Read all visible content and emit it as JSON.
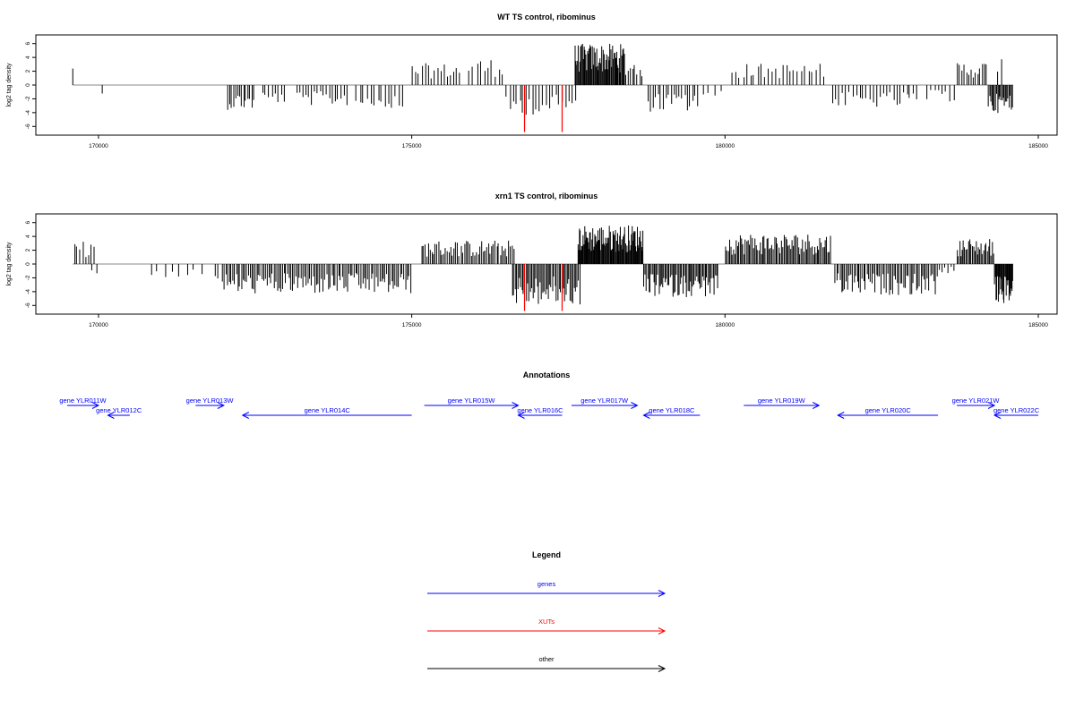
{
  "chart_data": [
    {
      "type": "bar",
      "title": "WT TS control, ribominus",
      "ylabel": "log2 tag density",
      "xlim": [
        169000,
        185300
      ],
      "ylim": [
        -7,
        7
      ],
      "xticks": [
        170000,
        175000,
        180000,
        185000
      ],
      "xtick_labels": [
        "170000",
        "175000",
        "180000",
        "185000"
      ],
      "yticks": [
        6,
        4,
        2,
        0,
        -2,
        -4,
        -6
      ],
      "ytick_labels": [
        "6",
        "4",
        "2",
        "0",
        "-2",
        "-4",
        "-6"
      ],
      "baseline_color": "#888888",
      "bar_color": "#000000",
      "highlight_color": "#ff0000",
      "highlights": [
        {
          "x": 176800,
          "value": -6.8
        },
        {
          "x": 177400,
          "value": -6.8
        }
      ],
      "segments": [
        {
          "start": 169590,
          "end": 169600,
          "n": 1,
          "value": 2.1
        },
        {
          "start": 170060,
          "end": 170070,
          "n": 1,
          "value": -1.6
        },
        {
          "start": 172050,
          "end": 172500,
          "n": 14,
          "value": -2.4
        },
        {
          "start": 172600,
          "end": 173000,
          "n": 8,
          "value": -1.8
        },
        {
          "start": 173150,
          "end": 174000,
          "n": 18,
          "value": -2.0
        },
        {
          "start": 174100,
          "end": 174900,
          "n": 14,
          "value": -2.3
        },
        {
          "start": 175000,
          "end": 175800,
          "n": 16,
          "value": 2.1
        },
        {
          "start": 175900,
          "end": 176500,
          "n": 10,
          "value": 2.6
        },
        {
          "start": 176500,
          "end": 177650,
          "n": 22,
          "value": -2.9
        },
        {
          "start": 177600,
          "end": 178400,
          "n": 60,
          "value": 4.0
        },
        {
          "start": 178400,
          "end": 178700,
          "n": 8,
          "value": 2.5
        },
        {
          "start": 178750,
          "end": 179600,
          "n": 20,
          "value": -2.6
        },
        {
          "start": 179600,
          "end": 180050,
          "n": 4,
          "value": -1.2
        },
        {
          "start": 180100,
          "end": 181600,
          "n": 26,
          "value": 2.1
        },
        {
          "start": 181700,
          "end": 183100,
          "n": 26,
          "value": -2.2
        },
        {
          "start": 183200,
          "end": 183700,
          "n": 8,
          "value": -1.6
        },
        {
          "start": 183700,
          "end": 184200,
          "n": 14,
          "value": 2.3
        },
        {
          "start": 184200,
          "end": 184600,
          "n": 22,
          "value": -2.7
        },
        {
          "start": 184350,
          "end": 184450,
          "n": 2,
          "value": 2.5
        }
      ]
    },
    {
      "type": "bar",
      "title": "xrn1 TS control, ribominus",
      "ylabel": "log2 tag density",
      "xlim": [
        169000,
        185300
      ],
      "ylim": [
        -7,
        7
      ],
      "xticks": [
        170000,
        175000,
        180000,
        185000
      ],
      "xtick_labels": [
        "170000",
        "175000",
        "180000",
        "185000"
      ],
      "yticks": [
        6,
        4,
        2,
        0,
        -2,
        -4,
        -6
      ],
      "ytick_labels": [
        "6",
        "4",
        "2",
        "0",
        "-2",
        "-4",
        "-6"
      ],
      "baseline_color": "#888888",
      "bar_color": "#000000",
      "highlight_color": "#ff0000",
      "highlights": [
        {
          "x": 176800,
          "value": -6.8
        },
        {
          "x": 177400,
          "value": -6.8
        }
      ],
      "segments": [
        {
          "start": 169600,
          "end": 169950,
          "n": 8,
          "value": 2.2
        },
        {
          "start": 169880,
          "end": 170000,
          "n": 2,
          "value": -1.2
        },
        {
          "start": 170800,
          "end": 171700,
          "n": 8,
          "value": -1.3
        },
        {
          "start": 171850,
          "end": 172000,
          "n": 3,
          "value": -1.8
        },
        {
          "start": 172000,
          "end": 175000,
          "n": 110,
          "value": -2.9
        },
        {
          "start": 175150,
          "end": 176650,
          "n": 55,
          "value": 2.3
        },
        {
          "start": 176600,
          "end": 177700,
          "n": 50,
          "value": -4.0
        },
        {
          "start": 177650,
          "end": 178700,
          "n": 90,
          "value": 3.8
        },
        {
          "start": 178700,
          "end": 179900,
          "n": 60,
          "value": -3.2
        },
        {
          "start": 180000,
          "end": 181700,
          "n": 80,
          "value": 3.0
        },
        {
          "start": 181750,
          "end": 183400,
          "n": 65,
          "value": -3.0
        },
        {
          "start": 183400,
          "end": 183700,
          "n": 6,
          "value": -0.9
        },
        {
          "start": 183700,
          "end": 184300,
          "n": 30,
          "value": 2.5
        },
        {
          "start": 184300,
          "end": 184600,
          "n": 26,
          "value": -3.8
        }
      ]
    }
  ],
  "annotations": {
    "title": "Annotations",
    "color": "#0000ff",
    "genes": [
      {
        "label": "gene YLR011W",
        "strand": "+",
        "start": 169500,
        "end": 170000
      },
      {
        "label": "gene YLR012C",
        "strand": "-",
        "start": 170150,
        "end": 170500
      },
      {
        "label": "gene YLR013W",
        "strand": "+",
        "start": 171550,
        "end": 172000
      },
      {
        "label": "gene YLR014C",
        "strand": "-",
        "start": 172300,
        "end": 175000
      },
      {
        "label": "gene YLR015W",
        "strand": "+",
        "start": 175200,
        "end": 176700
      },
      {
        "label": "gene YLR016C",
        "strand": "-",
        "start": 176700,
        "end": 177400
      },
      {
        "label": "gene YLR017W",
        "strand": "+",
        "start": 177550,
        "end": 178600
      },
      {
        "label": "gene YLR018C",
        "strand": "-",
        "start": 178700,
        "end": 179600
      },
      {
        "label": "gene YLR019W",
        "strand": "+",
        "start": 180300,
        "end": 181500
      },
      {
        "label": "gene YLR020C",
        "strand": "-",
        "start": 181800,
        "end": 183400
      },
      {
        "label": "gene YLR021W",
        "strand": "+",
        "start": 183700,
        "end": 184300
      },
      {
        "label": "gene YLR022C",
        "strand": "-",
        "start": 184300,
        "end": 185000
      }
    ]
  },
  "legend": {
    "title": "Legend",
    "items": [
      {
        "label": "genes",
        "color": "#0000ff"
      },
      {
        "label": "XUTs",
        "color": "#ff0000"
      },
      {
        "label": "other",
        "color": "#000000"
      }
    ]
  }
}
